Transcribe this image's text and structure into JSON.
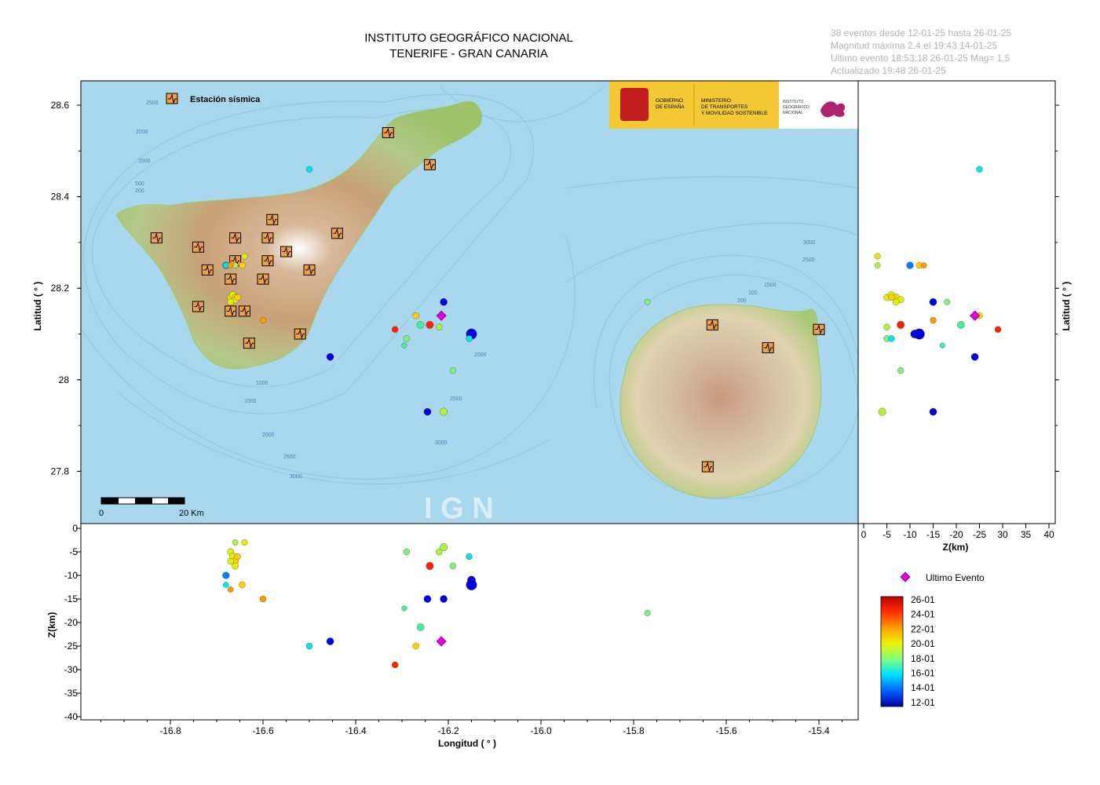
{
  "header": {
    "title_line1": "INSTITUTO GEOGRÁFICO NACIONAL",
    "title_line2": "TENERIFE - GRAN CANARIA"
  },
  "info": {
    "line1": "38 eventos desde 12-01-25 hasta 26-01-25",
    "line2": "Magnitud máxima 2.4 el 19:43 14-01-25",
    "line3": "Ultimo evento   18:53:18 26-01-25  Mag= 1.5",
    "line4": "Actualizado   19:48  26-01-25"
  },
  "map": {
    "station_legend": "Estación sísmica",
    "scale_zero": "0",
    "scale_label": "20 Km",
    "watermark": "I G N",
    "logo_gob": "GOBIERNO\nDE ESPAÑA",
    "logo_min": "MINISTERIO\nDE TRANSPORTES\nY MOVILIDAD SOSTENIBLE",
    "logo_ign": "INSTITUTO\nGEOGRÁFICO\nNACIONAL",
    "bathy_labels": [
      "2500",
      "2000",
      "1500",
      "500",
      "200",
      "1000",
      "1500",
      "2000",
      "2500",
      "3000",
      "2000",
      "2500",
      "3000",
      "3000",
      "2500",
      "1500",
      "200",
      "100"
    ]
  },
  "axes": {
    "lat_ticks": [
      "28.6",
      "28.4",
      "28.2",
      "28",
      "27.8"
    ],
    "lon_ticks": [
      "-16.8",
      "-16.6",
      "-16.4",
      "-16.2",
      "-16.0",
      "-15.8",
      "-15.6",
      "-15.4"
    ],
    "z_ticks": [
      "0",
      "-5",
      "-10",
      "-15",
      "-20",
      "-25",
      "-30",
      "-35",
      "-40"
    ],
    "zkm_ticks": [
      "0",
      "-5",
      "-10",
      "-15",
      "-20",
      "-25",
      "30",
      "35",
      "40"
    ],
    "lat_label": "Latitud ( ° )",
    "lon_label": "Longitud ( ° )",
    "z_label": "Z(km)",
    "zkm_label": "Z(km)"
  },
  "legend": {
    "last_event": "Ultimo Evento",
    "colorbar_labels": [
      "26-01",
      "24-01",
      "22-01",
      "20-01",
      "18-01",
      "16-01",
      "14-01",
      "12-01"
    ]
  },
  "colors": {
    "sea": "#a9d8ee",
    "marker_last": "#e600e6",
    "station": "#f0a040"
  },
  "stations": [
    {
      "lon": -16.83,
      "lat": 28.31
    },
    {
      "lon": -16.74,
      "lat": 28.29
    },
    {
      "lon": -16.72,
      "lat": 28.24
    },
    {
      "lon": -16.66,
      "lat": 28.31
    },
    {
      "lon": -16.66,
      "lat": 28.26
    },
    {
      "lon": -16.67,
      "lat": 28.22
    },
    {
      "lon": -16.59,
      "lat": 28.31
    },
    {
      "lon": -16.59,
      "lat": 28.26
    },
    {
      "lon": -16.6,
      "lat": 28.22
    },
    {
      "lon": -16.58,
      "lat": 28.35
    },
    {
      "lon": -16.55,
      "lat": 28.28
    },
    {
      "lon": -16.5,
      "lat": 28.24
    },
    {
      "lon": -16.44,
      "lat": 28.32
    },
    {
      "lon": -16.74,
      "lat": 28.16
    },
    {
      "lon": -16.67,
      "lat": 28.15
    },
    {
      "lon": -16.64,
      "lat": 28.15
    },
    {
      "lon": -16.63,
      "lat": 28.08
    },
    {
      "lon": -16.52,
      "lat": 28.1
    },
    {
      "lon": -16.33,
      "lat": 28.54
    },
    {
      "lon": -16.24,
      "lat": 28.47
    },
    {
      "lon": -15.63,
      "lat": 28.12
    },
    {
      "lon": -15.51,
      "lat": 28.07
    },
    {
      "lon": -15.4,
      "lat": 28.11
    },
    {
      "lon": -15.64,
      "lat": 27.81
    }
  ],
  "events": [
    {
      "lon": -16.5,
      "lat": 28.46,
      "z": -25,
      "day": 5,
      "mag": 1.0
    },
    {
      "lon": -16.68,
      "lat": 28.25,
      "z": -10,
      "day": 3,
      "mag": 1.2
    },
    {
      "lon": -16.68,
      "lat": 28.25,
      "z": -12,
      "day": 5,
      "mag": 0.8
    },
    {
      "lon": -16.64,
      "lat": 28.27,
      "z": -3,
      "day": 9,
      "mag": 0.9
    },
    {
      "lon": -16.67,
      "lat": 28.18,
      "z": -5,
      "day": 9,
      "mag": 1.1
    },
    {
      "lon": -16.665,
      "lat": 28.185,
      "z": -6,
      "day": 9,
      "mag": 1.3
    },
    {
      "lon": -16.66,
      "lat": 28.18,
      "z": -7,
      "day": 10,
      "mag": 1.2
    },
    {
      "lon": -16.66,
      "lat": 28.175,
      "z": -8,
      "day": 9,
      "mag": 1.1
    },
    {
      "lon": -16.655,
      "lat": 28.18,
      "z": -6,
      "day": 10,
      "mag": 1.0
    },
    {
      "lon": -16.67,
      "lat": 28.17,
      "z": -7,
      "day": 9,
      "mag": 1.0
    },
    {
      "lon": -16.66,
      "lat": 28.25,
      "z": -3,
      "day": 8,
      "mag": 0.8
    },
    {
      "lon": -16.645,
      "lat": 28.25,
      "z": -12,
      "day": 10,
      "mag": 1.0
    },
    {
      "lon": -16.67,
      "lat": 28.25,
      "z": -13,
      "day": 11,
      "mag": 0.8
    },
    {
      "lon": -16.6,
      "lat": 28.13,
      "z": -15,
      "day": 11,
      "mag": 1.0
    },
    {
      "lon": -16.455,
      "lat": 28.05,
      "z": -24,
      "day": 1,
      "mag": 1.3
    },
    {
      "lon": -16.315,
      "lat": 28.11,
      "z": -29,
      "day": 13,
      "mag": 1.0
    },
    {
      "lon": -16.29,
      "lat": 28.09,
      "z": -5,
      "day": 7,
      "mag": 1.0
    },
    {
      "lon": -16.295,
      "lat": 28.075,
      "z": -17,
      "day": 6,
      "mag": 0.7
    },
    {
      "lon": -16.27,
      "lat": 28.14,
      "z": -25,
      "day": 10,
      "mag": 1.0
    },
    {
      "lon": -16.26,
      "lat": 28.12,
      "z": -21,
      "day": 6,
      "mag": 1.3
    },
    {
      "lon": -16.24,
      "lat": 28.12,
      "z": -8,
      "day": 13,
      "mag": 1.4
    },
    {
      "lon": -16.22,
      "lat": 28.115,
      "z": -5,
      "day": 8,
      "mag": 1.0
    },
    {
      "lon": -16.21,
      "lat": 28.17,
      "z": -15,
      "day": 1,
      "mag": 1.3
    },
    {
      "lon": -16.245,
      "lat": 27.93,
      "z": -15,
      "day": 1,
      "mag": 1.3
    },
    {
      "lon": -16.21,
      "lat": 27.93,
      "z": -4,
      "day": 8,
      "mag": 1.4
    },
    {
      "lon": -16.19,
      "lat": 28.02,
      "z": -8,
      "day": 7,
      "mag": 1.0
    },
    {
      "lon": -16.15,
      "lat": 28.1,
      "z": -11,
      "day": 1,
      "mag": 1.6
    },
    {
      "lon": -16.15,
      "lat": 28.1,
      "z": -12,
      "day": 1,
      "mag": 2.4
    },
    {
      "lon": -16.155,
      "lat": 28.09,
      "z": -6,
      "day": 5,
      "mag": 1.0
    },
    {
      "lon": -15.77,
      "lat": 28.17,
      "z": -18,
      "day": 7,
      "mag": 0.9
    }
  ],
  "last_event": {
    "lon": -16.215,
    "lat": 28.14,
    "z": -24
  }
}
